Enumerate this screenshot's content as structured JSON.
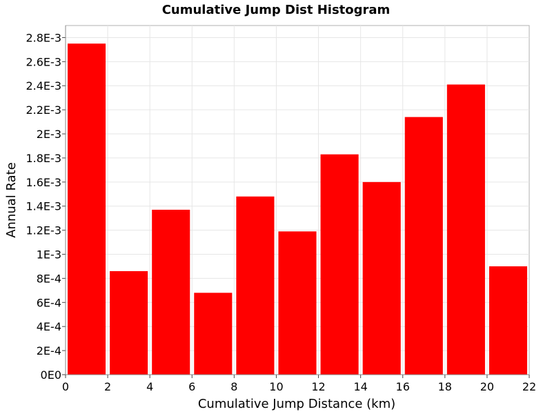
{
  "chart_data": {
    "type": "bar",
    "title": "Cumulative Jump Dist Histogram",
    "xlabel": "Cumulative Jump Distance (km)",
    "ylabel": "Annual Rate",
    "xlim": [
      0,
      22
    ],
    "ylim": [
      0,
      0.0029
    ],
    "x_ticks": [
      "0",
      "2",
      "4",
      "6",
      "8",
      "10",
      "12",
      "14",
      "16",
      "18",
      "20",
      "22"
    ],
    "y_ticks": [
      "0E0",
      "2E-4",
      "4E-4",
      "6E-4",
      "8E-4",
      "1E-3",
      "1.2E-3",
      "1.4E-3",
      "1.6E-3",
      "1.8E-3",
      "2E-3",
      "2.2E-3",
      "2.4E-3",
      "2.6E-3",
      "2.8E-3"
    ],
    "grid": true,
    "bar_color": "#ff0000",
    "bin_width": 2,
    "x": [
      1,
      3,
      5,
      7,
      9,
      11,
      13,
      15,
      17,
      19,
      21
    ],
    "values": [
      0.00275,
      0.00086,
      0.00137,
      0.00068,
      0.00148,
      0.00119,
      0.00183,
      0.0016,
      0.00214,
      0.00241,
      0.0009
    ]
  }
}
